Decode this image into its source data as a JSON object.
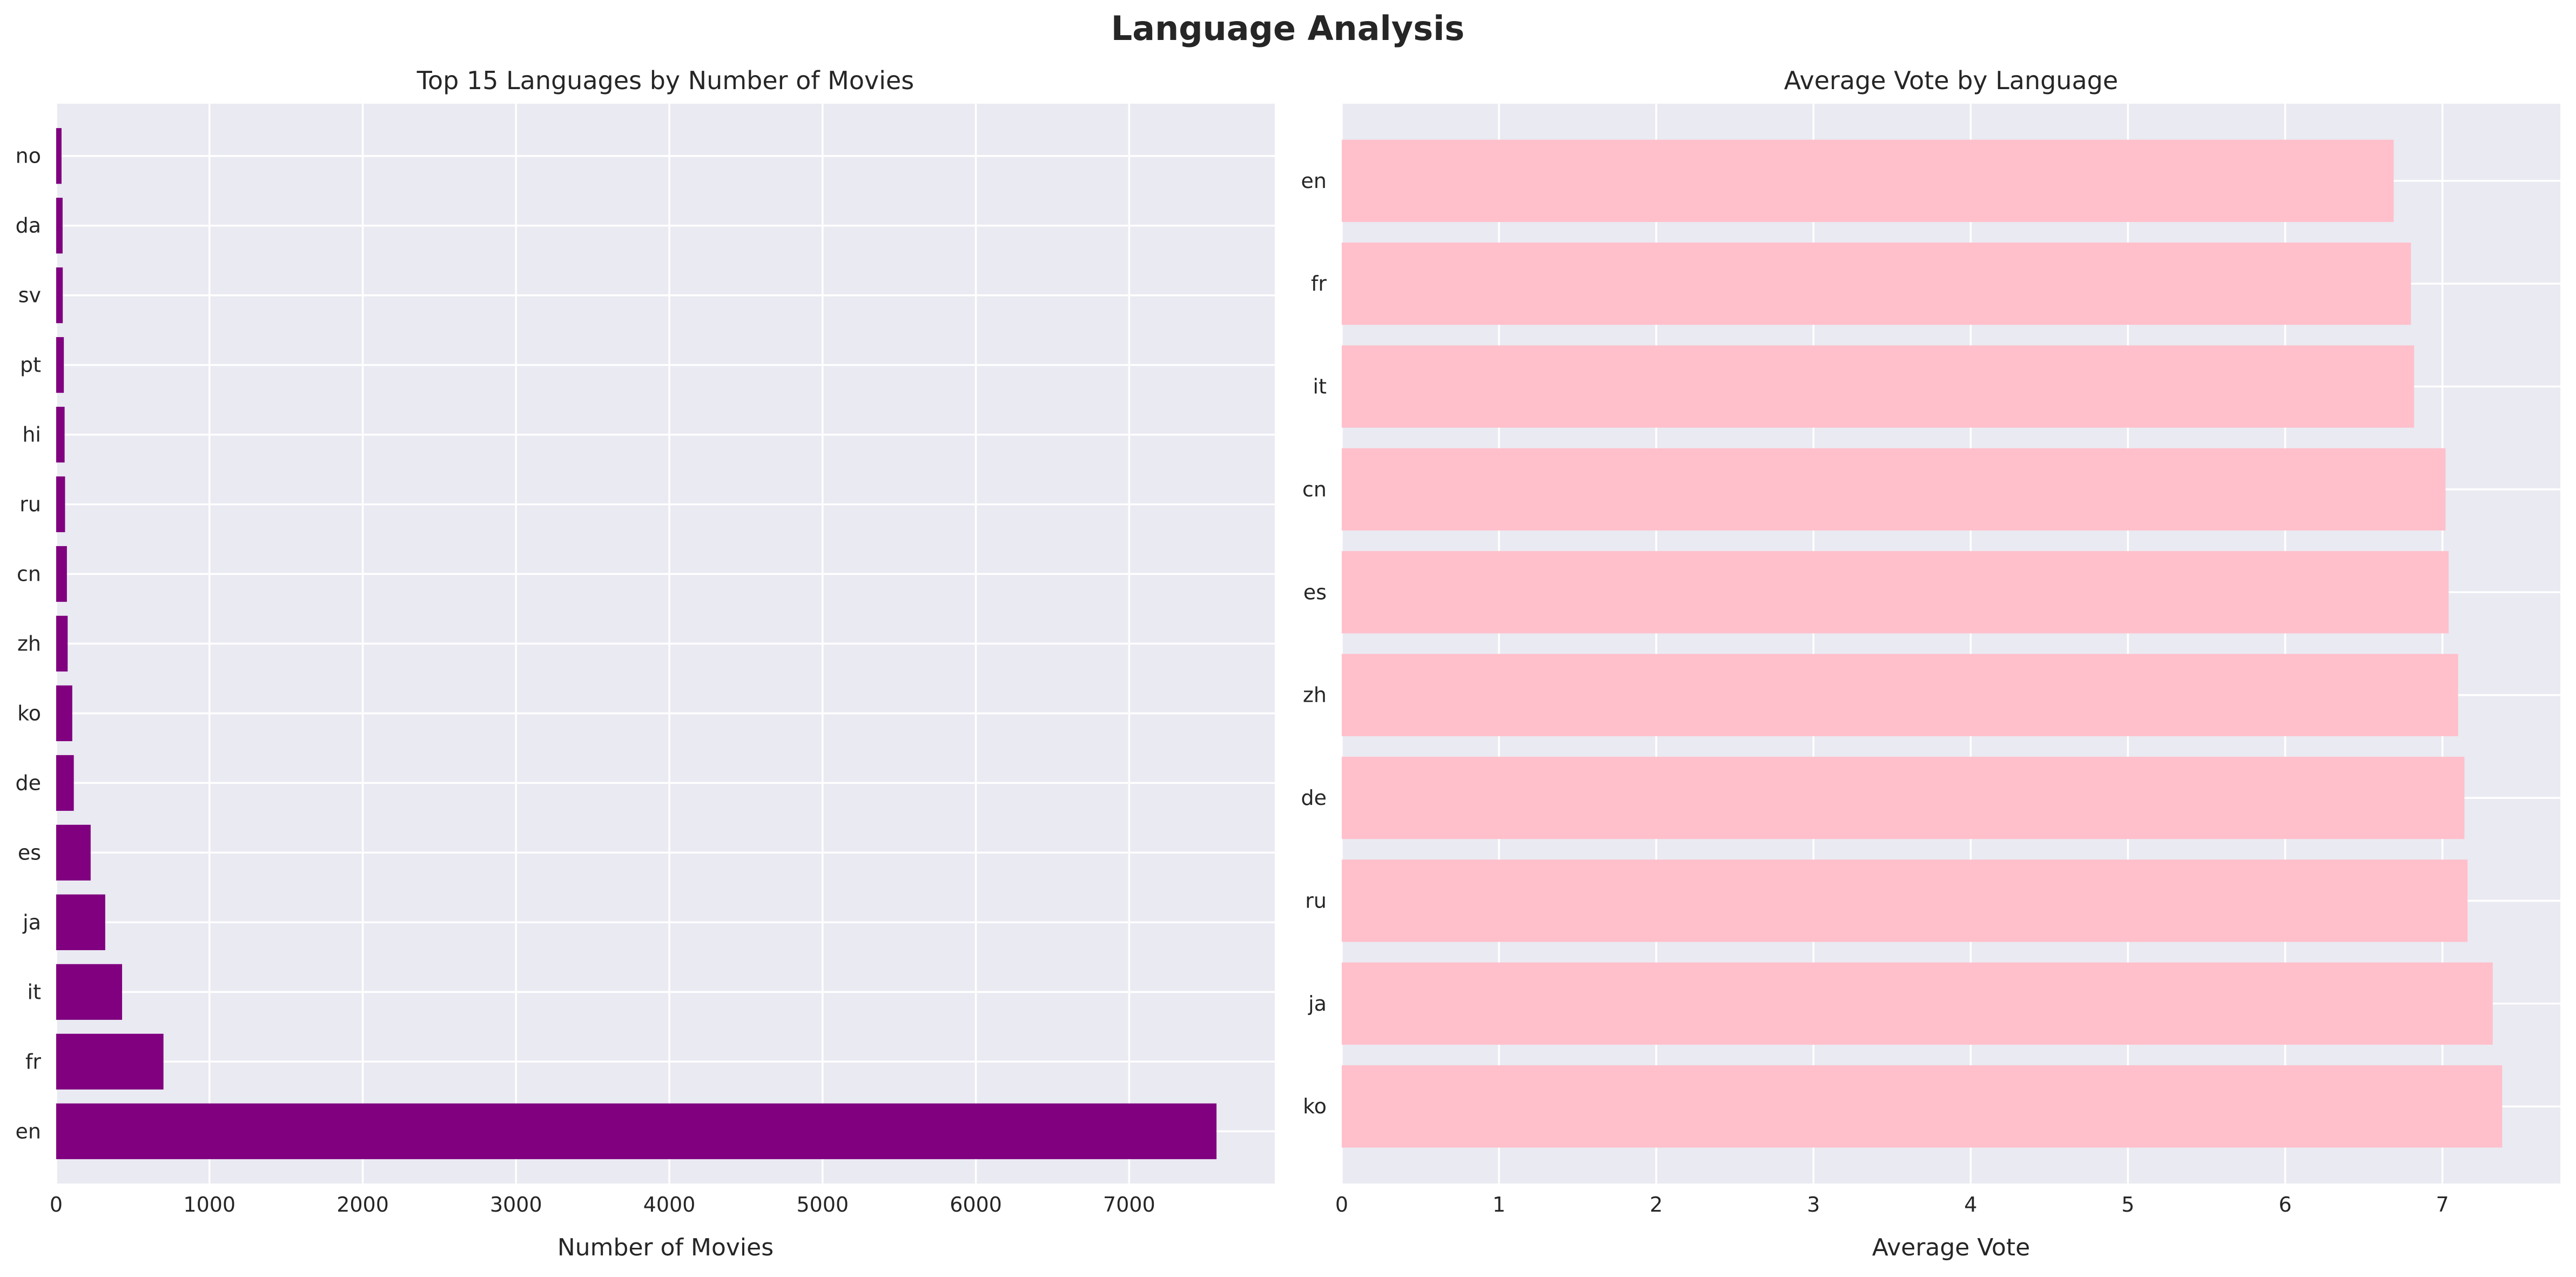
{
  "figure": {
    "title": "Language Analysis"
  },
  "chart_data": [
    {
      "type": "bar",
      "orientation": "horizontal",
      "title": "Top 15 Languages by Number of Movies",
      "xlabel": "Number of Movies",
      "ylabel": "",
      "categories": [
        "en",
        "fr",
        "it",
        "ja",
        "es",
        "de",
        "ko",
        "zh",
        "cn",
        "ru",
        "hi",
        "pt",
        "sv",
        "da",
        "no"
      ],
      "values": [
        7570,
        700,
        430,
        320,
        225,
        115,
        105,
        75,
        70,
        58,
        55,
        50,
        43,
        42,
        35
      ],
      "xlim": [
        0,
        7950
      ],
      "xticks": [
        0,
        1000,
        2000,
        3000,
        4000,
        5000,
        6000,
        7000
      ],
      "color": "#800080",
      "grid": true
    },
    {
      "type": "bar",
      "orientation": "horizontal",
      "title": "Average Vote by Language",
      "xlabel": "Average Vote",
      "ylabel": "",
      "categories": [
        "ko",
        "ja",
        "ru",
        "de",
        "zh",
        "es",
        "cn",
        "it",
        "fr",
        "en"
      ],
      "values": [
        7.38,
        7.32,
        7.16,
        7.14,
        7.1,
        7.04,
        7.02,
        6.82,
        6.8,
        6.69
      ],
      "xlim": [
        0,
        7.75
      ],
      "xticks": [
        0,
        1,
        2,
        3,
        4,
        5,
        6,
        7
      ],
      "color": "#ffc0cb",
      "grid": true
    }
  ]
}
